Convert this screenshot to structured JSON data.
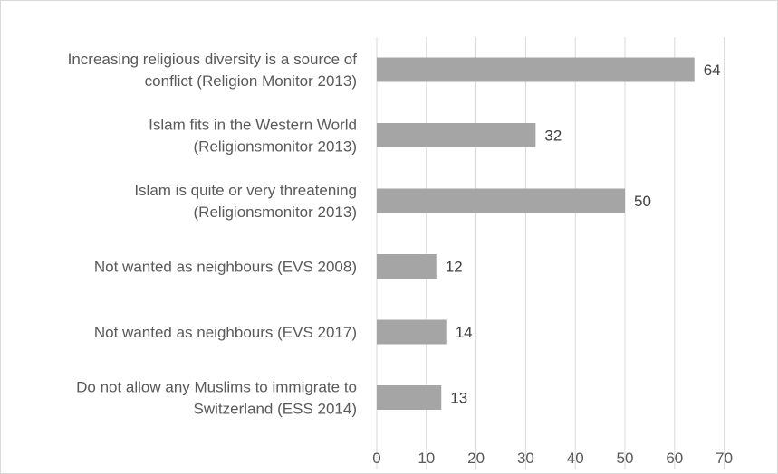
{
  "chart_data": {
    "type": "bar",
    "orientation": "horizontal",
    "title": "",
    "xlabel": "",
    "ylabel": "",
    "categories": [
      [
        "Increasing religious diversity is a source of",
        "conflict (Religion Monitor 2013)"
      ],
      [
        "Islam fits in the Western World",
        "(Religionsmonitor 2013)"
      ],
      [
        "Islam is quite or very threatening",
        "(Religionsmonitor 2013)"
      ],
      [
        "Not wanted as neighbours (EVS 2008)"
      ],
      [
        "Not wanted as neighbours (EVS 2017)"
      ],
      [
        "Do not allow any Muslims to immigrate to",
        "Switzerland (ESS 2014)"
      ]
    ],
    "values": [
      64,
      32,
      50,
      12,
      14,
      13
    ],
    "xlim": [
      0,
      70
    ],
    "xticks": [
      0,
      10,
      20,
      30,
      40,
      50,
      60,
      70
    ],
    "grid": "vertical",
    "legend": "none",
    "colors": {
      "bar": "#a5a5a5",
      "grid": "#d9d9d9",
      "text": "#595959"
    }
  }
}
